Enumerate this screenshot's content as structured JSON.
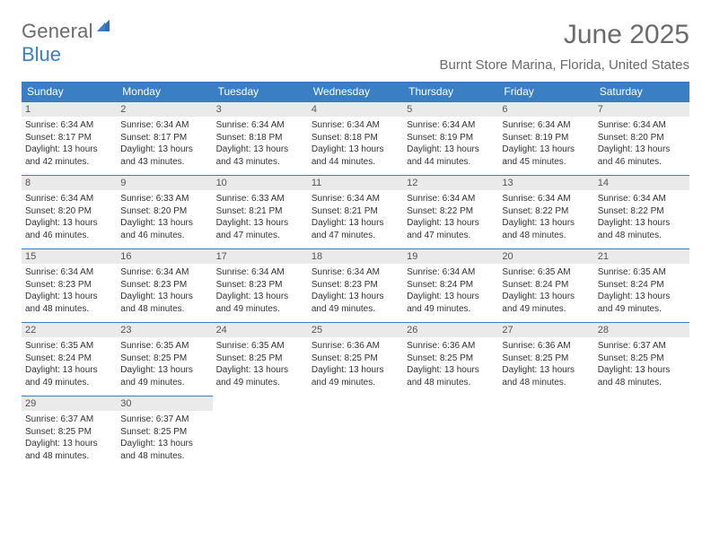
{
  "logo": {
    "word1": "General",
    "word2": "Blue"
  },
  "title": "June 2025",
  "location": "Burnt Store Marina, Florida, United States",
  "colors": {
    "header_bg": "#3a7fc4",
    "header_text": "#ffffff",
    "cell_border": "#3a7fc4",
    "daynum_bg": "#eaeaea",
    "page_bg": "#ffffff",
    "body_text": "#333333",
    "muted_text": "#6b6b6b"
  },
  "day_headers": [
    "Sunday",
    "Monday",
    "Tuesday",
    "Wednesday",
    "Thursday",
    "Friday",
    "Saturday"
  ],
  "weeks": [
    [
      {
        "n": "1",
        "sr": "Sunrise: 6:34 AM",
        "ss": "Sunset: 8:17 PM",
        "d1": "Daylight: 13 hours",
        "d2": "and 42 minutes."
      },
      {
        "n": "2",
        "sr": "Sunrise: 6:34 AM",
        "ss": "Sunset: 8:17 PM",
        "d1": "Daylight: 13 hours",
        "d2": "and 43 minutes."
      },
      {
        "n": "3",
        "sr": "Sunrise: 6:34 AM",
        "ss": "Sunset: 8:18 PM",
        "d1": "Daylight: 13 hours",
        "d2": "and 43 minutes."
      },
      {
        "n": "4",
        "sr": "Sunrise: 6:34 AM",
        "ss": "Sunset: 8:18 PM",
        "d1": "Daylight: 13 hours",
        "d2": "and 44 minutes."
      },
      {
        "n": "5",
        "sr": "Sunrise: 6:34 AM",
        "ss": "Sunset: 8:19 PM",
        "d1": "Daylight: 13 hours",
        "d2": "and 44 minutes."
      },
      {
        "n": "6",
        "sr": "Sunrise: 6:34 AM",
        "ss": "Sunset: 8:19 PM",
        "d1": "Daylight: 13 hours",
        "d2": "and 45 minutes."
      },
      {
        "n": "7",
        "sr": "Sunrise: 6:34 AM",
        "ss": "Sunset: 8:20 PM",
        "d1": "Daylight: 13 hours",
        "d2": "and 46 minutes."
      }
    ],
    [
      {
        "n": "8",
        "sr": "Sunrise: 6:34 AM",
        "ss": "Sunset: 8:20 PM",
        "d1": "Daylight: 13 hours",
        "d2": "and 46 minutes."
      },
      {
        "n": "9",
        "sr": "Sunrise: 6:33 AM",
        "ss": "Sunset: 8:20 PM",
        "d1": "Daylight: 13 hours",
        "d2": "and 46 minutes."
      },
      {
        "n": "10",
        "sr": "Sunrise: 6:33 AM",
        "ss": "Sunset: 8:21 PM",
        "d1": "Daylight: 13 hours",
        "d2": "and 47 minutes."
      },
      {
        "n": "11",
        "sr": "Sunrise: 6:34 AM",
        "ss": "Sunset: 8:21 PM",
        "d1": "Daylight: 13 hours",
        "d2": "and 47 minutes."
      },
      {
        "n": "12",
        "sr": "Sunrise: 6:34 AM",
        "ss": "Sunset: 8:22 PM",
        "d1": "Daylight: 13 hours",
        "d2": "and 47 minutes."
      },
      {
        "n": "13",
        "sr": "Sunrise: 6:34 AM",
        "ss": "Sunset: 8:22 PM",
        "d1": "Daylight: 13 hours",
        "d2": "and 48 minutes."
      },
      {
        "n": "14",
        "sr": "Sunrise: 6:34 AM",
        "ss": "Sunset: 8:22 PM",
        "d1": "Daylight: 13 hours",
        "d2": "and 48 minutes."
      }
    ],
    [
      {
        "n": "15",
        "sr": "Sunrise: 6:34 AM",
        "ss": "Sunset: 8:23 PM",
        "d1": "Daylight: 13 hours",
        "d2": "and 48 minutes."
      },
      {
        "n": "16",
        "sr": "Sunrise: 6:34 AM",
        "ss": "Sunset: 8:23 PM",
        "d1": "Daylight: 13 hours",
        "d2": "and 48 minutes."
      },
      {
        "n": "17",
        "sr": "Sunrise: 6:34 AM",
        "ss": "Sunset: 8:23 PM",
        "d1": "Daylight: 13 hours",
        "d2": "and 49 minutes."
      },
      {
        "n": "18",
        "sr": "Sunrise: 6:34 AM",
        "ss": "Sunset: 8:23 PM",
        "d1": "Daylight: 13 hours",
        "d2": "and 49 minutes."
      },
      {
        "n": "19",
        "sr": "Sunrise: 6:34 AM",
        "ss": "Sunset: 8:24 PM",
        "d1": "Daylight: 13 hours",
        "d2": "and 49 minutes."
      },
      {
        "n": "20",
        "sr": "Sunrise: 6:35 AM",
        "ss": "Sunset: 8:24 PM",
        "d1": "Daylight: 13 hours",
        "d2": "and 49 minutes."
      },
      {
        "n": "21",
        "sr": "Sunrise: 6:35 AM",
        "ss": "Sunset: 8:24 PM",
        "d1": "Daylight: 13 hours",
        "d2": "and 49 minutes."
      }
    ],
    [
      {
        "n": "22",
        "sr": "Sunrise: 6:35 AM",
        "ss": "Sunset: 8:24 PM",
        "d1": "Daylight: 13 hours",
        "d2": "and 49 minutes."
      },
      {
        "n": "23",
        "sr": "Sunrise: 6:35 AM",
        "ss": "Sunset: 8:25 PM",
        "d1": "Daylight: 13 hours",
        "d2": "and 49 minutes."
      },
      {
        "n": "24",
        "sr": "Sunrise: 6:35 AM",
        "ss": "Sunset: 8:25 PM",
        "d1": "Daylight: 13 hours",
        "d2": "and 49 minutes."
      },
      {
        "n": "25",
        "sr": "Sunrise: 6:36 AM",
        "ss": "Sunset: 8:25 PM",
        "d1": "Daylight: 13 hours",
        "d2": "and 49 minutes."
      },
      {
        "n": "26",
        "sr": "Sunrise: 6:36 AM",
        "ss": "Sunset: 8:25 PM",
        "d1": "Daylight: 13 hours",
        "d2": "and 48 minutes."
      },
      {
        "n": "27",
        "sr": "Sunrise: 6:36 AM",
        "ss": "Sunset: 8:25 PM",
        "d1": "Daylight: 13 hours",
        "d2": "and 48 minutes."
      },
      {
        "n": "28",
        "sr": "Sunrise: 6:37 AM",
        "ss": "Sunset: 8:25 PM",
        "d1": "Daylight: 13 hours",
        "d2": "and 48 minutes."
      }
    ],
    [
      {
        "n": "29",
        "sr": "Sunrise: 6:37 AM",
        "ss": "Sunset: 8:25 PM",
        "d1": "Daylight: 13 hours",
        "d2": "and 48 minutes."
      },
      {
        "n": "30",
        "sr": "Sunrise: 6:37 AM",
        "ss": "Sunset: 8:25 PM",
        "d1": "Daylight: 13 hours",
        "d2": "and 48 minutes."
      },
      null,
      null,
      null,
      null,
      null
    ]
  ]
}
